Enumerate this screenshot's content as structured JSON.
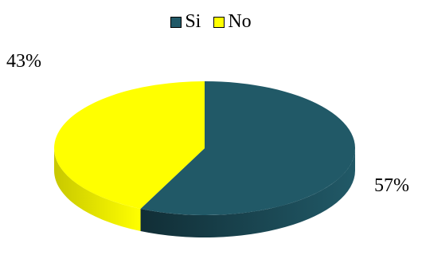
{
  "chart_data": {
    "type": "pie",
    "style": "3d",
    "legend_position": "top",
    "series": [
      {
        "name": "Si",
        "value": 57,
        "label": "57%",
        "color": "#215967",
        "side_color": "#112e36"
      },
      {
        "name": "No",
        "value": 43,
        "label": "43%",
        "color": "#ffff00",
        "side_color": "#c8c800"
      }
    ]
  }
}
